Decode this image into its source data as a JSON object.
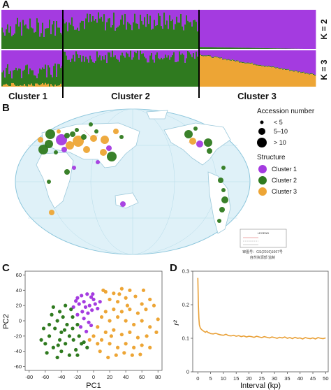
{
  "panels": {
    "a": "A",
    "b": "B",
    "c": "C",
    "d": "D"
  },
  "colors": {
    "cluster1": "#a43be0",
    "cluster2": "#2f7a1f",
    "cluster3": "#eda535",
    "map_water": "#dff1f8",
    "map_land": "#ffffff",
    "curve": "#e9a036"
  },
  "panel_a": {
    "k_labels": [
      "K = 2",
      "K = 3"
    ],
    "cluster_labels": [
      "Cluster 1",
      "Cluster 2",
      "Cluster 3"
    ]
  },
  "panel_b": {
    "legend_size_title": "Accession number",
    "legend_sizes": [
      "< 5",
      "5–10",
      "> 10"
    ],
    "legend_structure_title": "Structure",
    "legend_clusters": [
      "Cluster 1",
      "Cluster 2",
      "Cluster 3"
    ],
    "map_legend_title": "LEGEND",
    "map_caption_1": "审图号：GS(2016)1667号",
    "map_caption_2": "自然资源部 监制"
  },
  "chart_data": [
    {
      "type": "scatter",
      "panel": "C",
      "xlabel": "PC1",
      "ylabel": "PC2",
      "xlim": [
        -85,
        85
      ],
      "ylim": [
        -65,
        65
      ],
      "xticks": [
        -80,
        -60,
        -40,
        -20,
        0,
        20,
        40,
        60,
        80
      ],
      "yticks": [
        -60,
        -40,
        -20,
        0,
        20,
        40,
        60
      ],
      "series": [
        {
          "color": "#a43be0",
          "points": [
            [
              -20,
              30
            ],
            [
              -15,
              33
            ],
            [
              -8,
              35
            ],
            [
              -3,
              31
            ],
            [
              0,
              28
            ],
            [
              -12,
              25
            ],
            [
              -18,
              22
            ],
            [
              -5,
              20
            ],
            [
              2,
              22
            ],
            [
              -10,
              18
            ],
            [
              -25,
              18
            ],
            [
              -14,
              12
            ],
            [
              -7,
              10
            ],
            [
              -2,
              14
            ],
            [
              5,
              16
            ],
            [
              -20,
              8
            ],
            [
              -12,
              3
            ],
            [
              -6,
              -2
            ],
            [
              -16,
              -8
            ],
            [
              -9,
              -14
            ],
            [
              -3,
              -6
            ],
            [
              8,
              25
            ],
            [
              -1,
              35
            ],
            [
              -22,
              26
            ]
          ]
        },
        {
          "color": "#2f7a1f",
          "points": [
            [
              -50,
              18
            ],
            [
              -42,
              12
            ],
            [
              -35,
              20
            ],
            [
              -28,
              15
            ],
            [
              -38,
              5
            ],
            [
              -45,
              0
            ],
            [
              -55,
              -5
            ],
            [
              -48,
              -10
            ],
            [
              -40,
              -15
            ],
            [
              -33,
              -5
            ],
            [
              -26,
              -10
            ],
            [
              -20,
              -5
            ],
            [
              -30,
              -20
            ],
            [
              -42,
              -25
            ],
            [
              -55,
              -20
            ],
            [
              -60,
              -30
            ],
            [
              -50,
              -35
            ],
            [
              -40,
              -40
            ],
            [
              -35,
              -30
            ],
            [
              -25,
              -25
            ],
            [
              -18,
              -20
            ],
            [
              -12,
              -28
            ],
            [
              -30,
              -45
            ],
            [
              -22,
              -38
            ],
            [
              -45,
              -48
            ],
            [
              -58,
              -42
            ],
            [
              -65,
              -25
            ],
            [
              -62,
              -10
            ],
            [
              -15,
              -30
            ],
            [
              -8,
              -35
            ],
            [
              -26,
              5
            ],
            [
              -36,
              -12
            ],
            [
              -52,
              8
            ],
            [
              -44,
              -32
            ],
            [
              -20,
              -45
            ]
          ]
        },
        {
          "color": "#eda535",
          "points": [
            [
              15,
              38
            ],
            [
              25,
              36
            ],
            [
              35,
              42
            ],
            [
              45,
              40
            ],
            [
              20,
              28
            ],
            [
              30,
              25
            ],
            [
              40,
              30
            ],
            [
              52,
              32
            ],
            [
              60,
              22
            ],
            [
              70,
              28
            ],
            [
              75,
              20
            ],
            [
              65,
              15
            ],
            [
              55,
              10
            ],
            [
              45,
              15
            ],
            [
              35,
              12
            ],
            [
              25,
              15
            ],
            [
              15,
              12
            ],
            [
              10,
              5
            ],
            [
              20,
              0
            ],
            [
              30,
              5
            ],
            [
              40,
              0
            ],
            [
              50,
              -5
            ],
            [
              60,
              0
            ],
            [
              70,
              -8
            ],
            [
              80,
              2
            ],
            [
              78,
              -15
            ],
            [
              66,
              -20
            ],
            [
              55,
              -22
            ],
            [
              45,
              -15
            ],
            [
              35,
              -18
            ],
            [
              25,
              -12
            ],
            [
              15,
              -15
            ],
            [
              5,
              -8
            ],
            [
              10,
              -25
            ],
            [
              20,
              -30
            ],
            [
              30,
              -35
            ],
            [
              40,
              -30
            ],
            [
              50,
              -35
            ],
            [
              60,
              -32
            ],
            [
              38,
              -42
            ],
            [
              28,
              -45
            ],
            [
              48,
              -45
            ],
            [
              58,
              -44
            ],
            [
              70,
              -35
            ],
            [
              8,
              -40
            ],
            [
              18,
              -48
            ],
            [
              42,
              20
            ],
            [
              32,
              35
            ],
            [
              62,
              40
            ],
            [
              12,
              40
            ],
            [
              0,
              -20
            ],
            [
              5,
              -30
            ],
            [
              22,
              -20
            ],
            [
              -5,
              -25
            ]
          ]
        }
      ]
    },
    {
      "type": "line",
      "panel": "D",
      "xlabel": "Interval (kp)",
      "ylabel": "r²",
      "xlim": [
        -2,
        51
      ],
      "ylim": [
        0,
        0.3
      ],
      "xticks": [
        0,
        5,
        10,
        15,
        20,
        25,
        30,
        35,
        40,
        45,
        50
      ],
      "yticks": [
        0,
        0.1,
        0.2,
        0.3
      ],
      "series": [
        {
          "color": "#e9a036",
          "x": [
            0,
            0.2,
            0.4,
            0.6,
            0.8,
            1,
            1.3,
            1.6,
            2,
            2.5,
            3,
            3.5,
            4,
            4.5,
            5,
            6,
            7,
            8,
            9,
            10,
            11,
            12,
            13,
            14,
            15,
            16,
            17,
            18,
            19,
            20,
            21,
            22,
            23,
            24,
            25,
            26,
            27,
            28,
            29,
            30,
            31,
            32,
            33,
            34,
            35,
            36,
            37,
            38,
            39,
            40,
            41,
            42,
            43,
            44,
            45,
            46,
            47,
            48,
            49,
            50
          ],
          "y": [
            0.28,
            0.2,
            0.16,
            0.14,
            0.135,
            0.13,
            0.127,
            0.125,
            0.123,
            0.12,
            0.118,
            0.121,
            0.117,
            0.116,
            0.114,
            0.113,
            0.115,
            0.112,
            0.11,
            0.109,
            0.112,
            0.108,
            0.107,
            0.109,
            0.106,
            0.108,
            0.105,
            0.107,
            0.104,
            0.106,
            0.105,
            0.103,
            0.106,
            0.104,
            0.102,
            0.105,
            0.103,
            0.101,
            0.104,
            0.102,
            0.1,
            0.103,
            0.101,
            0.104,
            0.1,
            0.102,
            0.099,
            0.103,
            0.1,
            0.101,
            0.098,
            0.102,
            0.1,
            0.099,
            0.101,
            0.098,
            0.102,
            0.1,
            0.099,
            0.101
          ]
        }
      ]
    }
  ]
}
